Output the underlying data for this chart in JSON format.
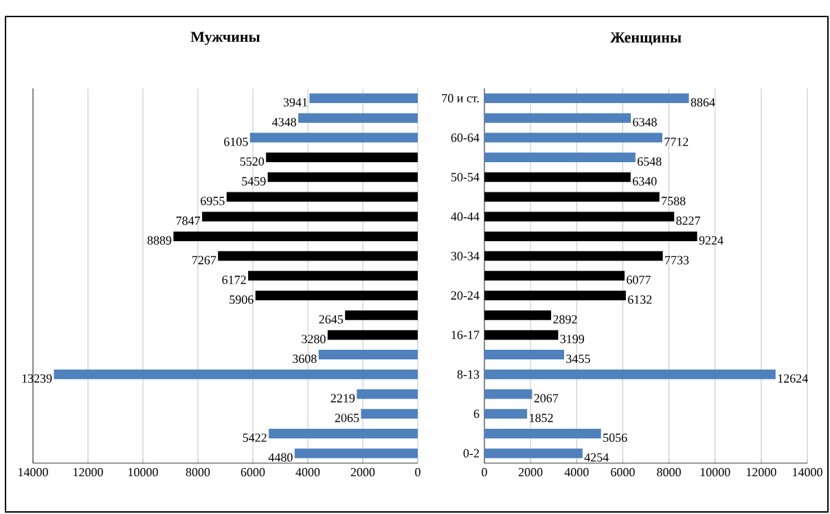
{
  "chart_data": [
    {
      "type": "bar",
      "orientation": "horizontal",
      "title": "Мужчины",
      "grid": "x",
      "data_labels": true,
      "categories": [
        null,
        null,
        null,
        null,
        null,
        null,
        null,
        null,
        null,
        null,
        null,
        null,
        null,
        null,
        null,
        null,
        null,
        null,
        null
      ],
      "values": [
        3941,
        4348,
        6105,
        5520,
        5459,
        6955,
        7847,
        8889,
        7267,
        6172,
        5906,
        2645,
        3280,
        3608,
        13239,
        2219,
        2065,
        5422,
        4480
      ],
      "colors": [
        "#4f81bd",
        "#4f81bd",
        "#4f81bd",
        "#000000",
        "#000000",
        "#000000",
        "#000000",
        "#000000",
        "#000000",
        "#000000",
        "#000000",
        "#000000",
        "#000000",
        "#4f81bd",
        "#4f81bd",
        "#4f81bd",
        "#4f81bd",
        "#4f81bd",
        "#4f81bd"
      ],
      "xlim": [
        14000,
        0
      ],
      "xticks": [
        0,
        2000,
        4000,
        6000,
        8000,
        10000,
        12000,
        14000
      ]
    },
    {
      "type": "bar",
      "orientation": "horizontal",
      "title": "Женщины",
      "grid": "x",
      "data_labels": true,
      "categories": [
        "70 и ст.",
        null,
        "60-64",
        null,
        "50-54",
        null,
        "40-44",
        null,
        "30-34",
        null,
        "20-24",
        null,
        "16-17",
        null,
        "8-13",
        null,
        "6",
        null,
        "0-2"
      ],
      "values": [
        8864,
        6348,
        7712,
        6548,
        6340,
        7588,
        8227,
        9224,
        7733,
        6077,
        6132,
        2892,
        3199,
        3455,
        12624,
        2067,
        1852,
        5056,
        4254
      ],
      "colors": [
        "#4f81bd",
        "#4f81bd",
        "#4f81bd",
        "#4f81bd",
        "#000000",
        "#000000",
        "#000000",
        "#000000",
        "#000000",
        "#000000",
        "#000000",
        "#000000",
        "#000000",
        "#4f81bd",
        "#4f81bd",
        "#4f81bd",
        "#4f81bd",
        "#4f81bd",
        "#4f81bd"
      ],
      "xlim": [
        0,
        14000
      ],
      "xticks": [
        0,
        2000,
        4000,
        6000,
        8000,
        10000,
        12000,
        14000
      ]
    }
  ]
}
